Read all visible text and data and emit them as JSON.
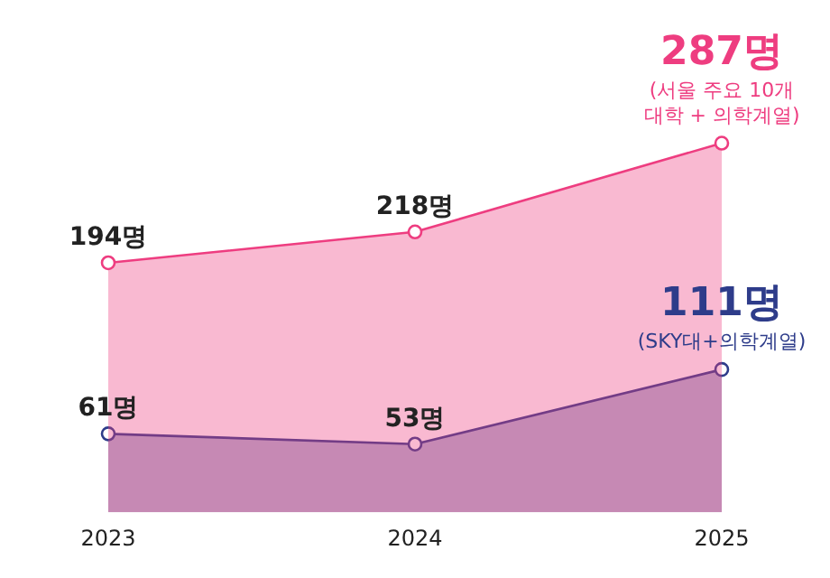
{
  "chart_data": {
    "type": "area",
    "categories": [
      "2023",
      "2024",
      "2025"
    ],
    "series": [
      {
        "name": "(서울 주요 10개 대학 + 의학계열)",
        "color": "#ee3d80",
        "values": [
          194,
          218,
          287
        ],
        "value_labels": [
          "194명",
          "218명",
          "287명"
        ]
      },
      {
        "name": "(SKY대+의학계열)",
        "color": "#2e3c8a",
        "values": [
          61,
          53,
          111
        ],
        "value_labels": [
          "61명",
          "53명",
          "111명"
        ]
      }
    ],
    "tick_labels": "x",
    "grid": false,
    "legend": false,
    "marker": "circle"
  }
}
